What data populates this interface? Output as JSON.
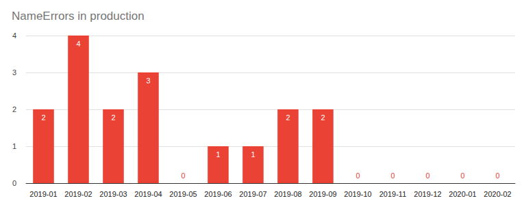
{
  "chart_data": {
    "type": "bar",
    "title": "NameErrors in production",
    "categories": [
      "2019-01",
      "2019-02",
      "2019-03",
      "2019-04",
      "2019-05",
      "2019-06",
      "2019-07",
      "2019-08",
      "2019-09",
      "2019-10",
      "2019-11",
      "2019-12",
      "2020-01",
      "2020-02"
    ],
    "values": [
      2,
      4,
      2,
      3,
      0,
      1,
      1,
      2,
      2,
      0,
      0,
      0,
      0,
      0
    ],
    "color": "#ea4335",
    "ylim": [
      0,
      4
    ],
    "yticks": [
      0,
      1,
      2,
      3,
      4
    ],
    "grid": true,
    "data_labels": true
  }
}
